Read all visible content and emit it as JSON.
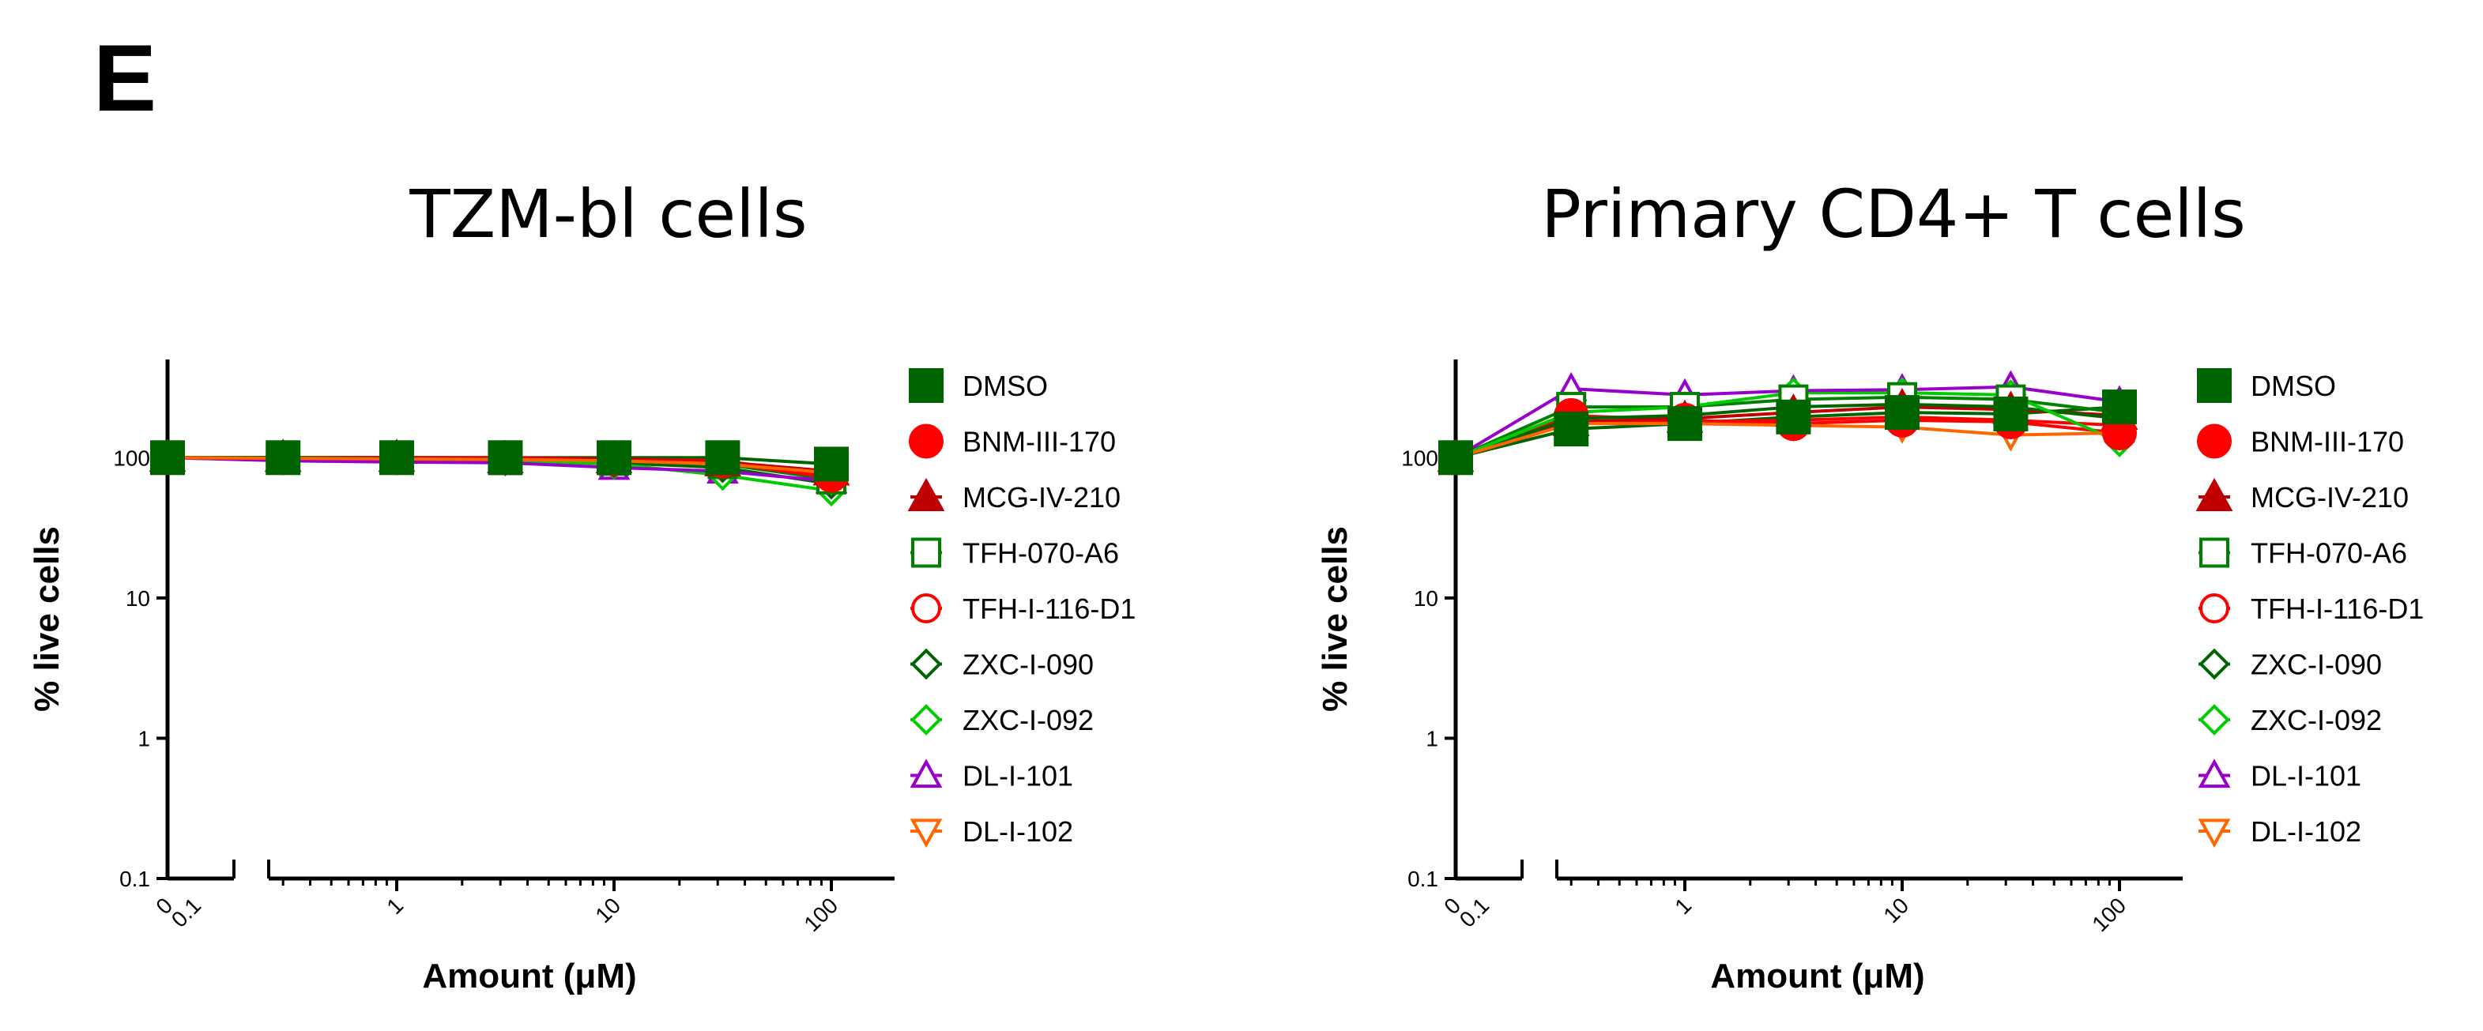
{
  "figure": {
    "panel_letter": "E"
  },
  "chart_data": [
    {
      "type": "line",
      "title": "TZM-bl cells",
      "xlabel": "Amount (μM)",
      "ylabel": "% live cells",
      "x_scale": "log",
      "y_scale": "log",
      "y_ticks": [
        0.1,
        1,
        10,
        100
      ],
      "y_tick_labels": [
        "0.1",
        "1",
        "10",
        "100"
      ],
      "x_ticks_left_labels": [
        "0",
        "0.1"
      ],
      "x_ticks_main": [
        1,
        10,
        100
      ],
      "x_ticks_main_labels": [
        "1",
        "10",
        "100"
      ],
      "x": [
        0.3,
        1,
        3.16,
        10,
        31.6,
        100
      ],
      "series": [
        {
          "name": "DMSO",
          "marker": "square-filled",
          "color": "#006400",
          "zero_value": 100,
          "values": [
            100,
            100,
            100,
            100,
            100,
            90
          ]
        },
        {
          "name": "BNM-III-170",
          "marker": "circle-filled",
          "color": "#ff0000",
          "zero_value": 100,
          "values": [
            100,
            100,
            100,
            98,
            95,
            75
          ]
        },
        {
          "name": "MCG-IV-210",
          "marker": "triangle-filled",
          "color": "#c00000",
          "zero_value": 100,
          "values": [
            100,
            100,
            98,
            98,
            93,
            80
          ]
        },
        {
          "name": "TFH-070-A6",
          "marker": "square-open",
          "color": "#008000",
          "zero_value": 100,
          "values": [
            100,
            98,
            97,
            95,
            90,
            70
          ]
        },
        {
          "name": "TFH-I-116-D1",
          "marker": "circle-open",
          "color": "#ff0000",
          "zero_value": 100,
          "values": [
            99,
            98,
            97,
            96,
            92,
            72
          ]
        },
        {
          "name": "ZXC-I-090",
          "marker": "diamond-open",
          "color": "#006400",
          "zero_value": 100,
          "values": [
            100,
            98,
            96,
            92,
            85,
            65
          ]
        },
        {
          "name": "ZXC-I-092",
          "marker": "diamond-open",
          "color": "#00cc00",
          "zero_value": 100,
          "values": [
            98,
            97,
            95,
            90,
            75,
            58
          ]
        },
        {
          "name": "DL-I-101",
          "marker": "triangle-open",
          "color": "#9900cc",
          "zero_value": 100,
          "values": [
            95,
            93,
            92,
            85,
            80,
            68
          ]
        },
        {
          "name": "DL-I-102",
          "marker": "triangle-down-open",
          "color": "#ff6600",
          "zero_value": 100,
          "values": [
            99,
            98,
            97,
            95,
            90,
            78
          ]
        }
      ]
    },
    {
      "type": "line",
      "title": "Primary CD4+ T cells",
      "xlabel": "Amount (μM)",
      "ylabel": "% live cells",
      "x_scale": "log",
      "y_scale": "log",
      "y_ticks": [
        0.1,
        1,
        10,
        100
      ],
      "y_tick_labels": [
        "0.1",
        "1",
        "10",
        "100"
      ],
      "x_ticks_left_labels": [
        "0",
        "0.1"
      ],
      "x_ticks_main": [
        1,
        10,
        100
      ],
      "x_ticks_main_labels": [
        "1",
        "10",
        "100"
      ],
      "x": [
        0.3,
        1,
        3.16,
        10,
        31.6,
        100
      ],
      "series": [
        {
          "name": "DMSO",
          "marker": "square-filled",
          "color": "#006400",
          "zero_value": 100,
          "values": [
            160,
            175,
            195,
            210,
            205,
            230
          ]
        },
        {
          "name": "BNM-III-170",
          "marker": "circle-filled",
          "color": "#ff0000",
          "zero_value": 100,
          "values": [
            200,
            185,
            175,
            185,
            180,
            150
          ]
        },
        {
          "name": "MCG-IV-210",
          "marker": "triangle-filled",
          "color": "#c00000",
          "zero_value": 100,
          "values": [
            180,
            190,
            210,
            230,
            220,
            200
          ]
        },
        {
          "name": "TFH-070-A6",
          "marker": "square-open",
          "color": "#008000",
          "zero_value": 100,
          "values": [
            230,
            230,
            260,
            270,
            260,
            210
          ]
        },
        {
          "name": "TFH-I-116-D1",
          "marker": "circle-open",
          "color": "#ff0000",
          "zero_value": 100,
          "values": [
            175,
            180,
            185,
            195,
            185,
            170
          ]
        },
        {
          "name": "ZXC-I-090",
          "marker": "diamond-open",
          "color": "#006400",
          "zero_value": 100,
          "values": [
            190,
            200,
            230,
            240,
            230,
            190
          ]
        },
        {
          "name": "ZXC-I-092",
          "marker": "diamond-open",
          "color": "#00cc00",
          "zero_value": 100,
          "values": [
            210,
            230,
            290,
            290,
            280,
            130
          ]
        },
        {
          "name": "DL-I-101",
          "marker": "triangle-open",
          "color": "#9900cc",
          "zero_value": 100,
          "values": [
            310,
            280,
            300,
            305,
            320,
            250
          ]
        },
        {
          "name": "DL-I-102",
          "marker": "triangle-down-open",
          "color": "#ff6600",
          "zero_value": 100,
          "values": [
            175,
            175,
            170,
            165,
            145,
            150
          ]
        }
      ]
    }
  ]
}
